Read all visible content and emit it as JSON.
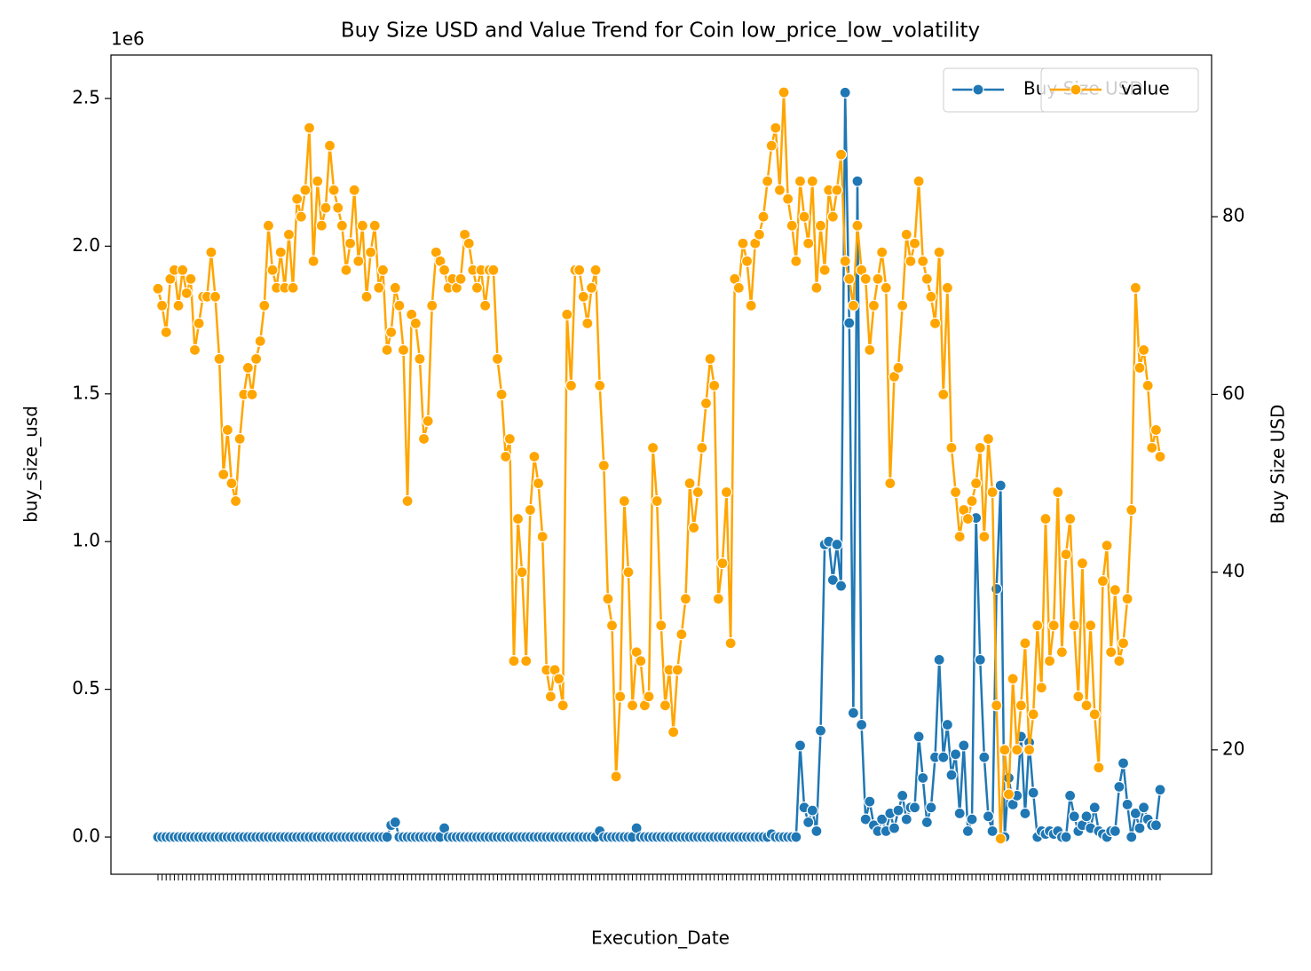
{
  "chart_data": {
    "type": "line",
    "title": "Buy Size USD and Value Trend for Coin low_price_low_volatility",
    "x_label": "Execution_Date",
    "y_label": "buy_size_usd",
    "y2_label": "Buy Size USD",
    "y_offset_label": "1e6",
    "legend": "upper right",
    "categories": [
      null,
      null,
      null,
      null,
      null,
      null,
      null,
      null,
      null,
      null,
      null,
      null,
      null,
      null,
      null,
      null,
      null,
      null,
      null,
      null,
      null,
      null,
      null,
      null,
      null,
      null,
      null,
      null,
      null,
      null,
      null,
      null,
      null,
      null,
      null,
      null,
      null,
      null,
      null,
      null,
      null,
      null,
      null,
      null,
      null,
      null,
      null,
      null,
      null,
      null,
      null,
      null,
      null,
      null,
      null,
      null,
      null,
      null,
      null,
      null,
      null,
      null,
      null,
      null,
      null,
      null,
      null,
      null,
      null,
      null,
      null,
      null,
      null,
      null,
      null,
      null,
      null,
      null,
      null,
      null,
      null,
      null,
      null,
      null,
      null,
      null,
      null,
      null,
      null,
      null,
      null,
      null,
      null,
      null,
      null,
      null,
      null,
      null,
      null,
      null,
      null,
      null,
      null,
      null,
      null,
      null,
      null,
      null,
      null,
      null,
      null,
      null,
      null,
      null,
      null,
      null,
      null,
      null,
      null,
      null,
      null,
      null,
      null,
      null,
      null,
      null,
      null,
      null,
      null,
      null,
      null,
      null,
      null,
      null,
      null,
      null,
      null,
      null,
      null,
      null,
      null,
      null,
      null,
      null,
      null,
      null,
      null,
      null,
      null,
      null,
      null,
      null,
      null,
      null,
      null,
      null,
      null,
      null,
      null,
      null,
      null,
      null,
      null,
      null,
      null,
      null,
      null,
      null,
      null,
      null,
      null,
      null,
      null,
      null,
      null,
      null,
      null,
      null,
      null,
      null,
      null,
      null,
      null,
      null,
      null,
      null,
      null,
      null,
      null,
      null,
      null,
      null,
      null,
      null,
      null,
      null,
      null,
      null,
      null,
      null,
      null,
      null,
      null,
      null,
      null,
      null,
      null,
      null,
      null,
      null,
      null,
      null,
      null,
      null,
      null,
      null,
      null,
      null,
      null,
      null,
      null,
      null,
      null,
      null,
      null,
      null,
      null,
      null,
      null,
      null,
      null,
      null,
      null,
      null,
      null,
      null,
      null,
      null,
      null,
      null,
      null,
      null,
      null,
      null,
      null,
      null
    ],
    "ylim": [
      -126000,
      2647000
    ],
    "yticks": [
      {
        "value": 0,
        "label": "0.0"
      },
      {
        "value": 500000,
        "label": "0.5"
      },
      {
        "value": 1000000,
        "label": "1.0"
      },
      {
        "value": 1500000,
        "label": "1.5"
      },
      {
        "value": 2000000,
        "label": "2.0"
      },
      {
        "value": 2500000,
        "label": "2.5"
      }
    ],
    "y2lim": [
      6.0,
      98.2
    ],
    "y2ticks": [
      20,
      40,
      60,
      80
    ],
    "series": [
      {
        "name": "Buy Size USD",
        "color": "#1f77b4",
        "values": [
          0,
          0,
          0,
          0,
          0,
          0,
          0,
          0,
          0,
          0,
          0,
          0,
          0,
          0,
          0,
          0,
          0,
          0,
          0,
          0,
          0,
          0,
          0,
          0,
          0,
          0,
          0,
          0,
          0,
          0,
          0,
          0,
          0,
          0,
          0,
          0,
          0,
          0,
          0,
          0,
          0,
          0,
          0,
          0,
          0,
          0,
          0,
          0,
          0,
          0,
          0,
          0,
          0,
          0,
          0,
          0,
          0,
          40000,
          50000,
          0,
          0,
          0,
          0,
          0,
          0,
          0,
          0,
          0,
          0,
          0,
          30000,
          0,
          0,
          0,
          0,
          0,
          0,
          0,
          0,
          0,
          0,
          0,
          0,
          0,
          0,
          0,
          0,
          0,
          0,
          0,
          0,
          0,
          0,
          0,
          0,
          0,
          0,
          0,
          0,
          0,
          0,
          0,
          0,
          0,
          0,
          0,
          0,
          0,
          20000,
          0,
          0,
          0,
          0,
          0,
          0,
          0,
          0,
          30000,
          0,
          0,
          0,
          0,
          0,
          0,
          0,
          0,
          0,
          0,
          0,
          0,
          0,
          0,
          0,
          0,
          0,
          0,
          0,
          0,
          0,
          0,
          0,
          0,
          0,
          0,
          0,
          0,
          0,
          0,
          0,
          0,
          10000,
          0,
          0,
          0,
          0,
          0,
          0,
          310000,
          100000,
          50000,
          90000,
          20000,
          360000,
          990000,
          1000000,
          870000,
          990000,
          850000,
          2520000,
          1740000,
          420000,
          2220000,
          380000,
          60000,
          120000,
          40000,
          20000,
          60000,
          20000,
          80000,
          30000,
          90000,
          140000,
          60000,
          100000,
          100000,
          340000,
          200000,
          50000,
          100000,
          270000,
          600000,
          270000,
          380000,
          210000,
          280000,
          80000,
          310000,
          20000,
          60000,
          1080000,
          600000,
          270000,
          70000,
          20000,
          840000,
          1190000,
          0,
          200000,
          110000,
          140000,
          340000,
          80000,
          320000,
          150000,
          0,
          20000,
          10000,
          20000,
          10000,
          20000,
          0,
          0,
          140000,
          70000,
          20000,
          40000,
          70000,
          30000,
          100000,
          20000,
          10000,
          0,
          20000,
          20000,
          170000,
          250000,
          110000,
          0,
          80000,
          30000,
          100000,
          60000,
          40000,
          40000,
          160000
        ]
      },
      {
        "name": "value",
        "color": "#ffa500",
        "axis": "y2",
        "values": [
          71.9,
          70,
          67,
          73,
          74,
          70,
          74,
          71.4,
          73,
          65,
          68,
          71,
          71,
          76,
          71,
          64,
          51,
          56,
          50,
          48,
          55,
          60,
          63,
          60,
          64,
          66,
          70,
          79,
          74,
          72,
          76,
          72,
          78,
          72,
          82,
          80,
          83,
          90,
          75,
          84,
          79,
          81,
          88,
          83,
          81,
          79,
          74,
          77,
          83,
          75,
          79,
          71,
          76,
          79,
          72,
          74,
          65,
          67,
          72,
          70,
          65,
          48,
          69,
          68,
          64,
          55,
          57,
          70,
          76,
          75,
          74,
          72,
          73,
          72,
          73,
          78,
          77,
          74,
          72,
          74,
          70,
          74,
          74,
          64,
          60,
          53,
          55,
          30,
          46,
          40,
          30,
          47,
          53,
          50,
          44,
          29,
          26,
          29,
          28,
          25,
          69,
          61,
          74,
          74,
          71,
          68,
          72,
          74,
          61,
          52,
          37,
          34,
          17,
          26,
          48,
          40,
          25,
          31,
          30,
          25,
          26,
          54,
          48,
          34,
          25,
          29,
          22,
          29,
          33,
          37,
          50,
          45,
          49,
          54,
          59,
          64,
          61,
          37,
          41,
          49,
          32,
          73,
          72,
          77,
          75,
          70,
          77,
          78,
          80,
          84,
          88,
          90,
          83,
          94,
          82,
          79,
          75,
          84,
          80,
          77,
          84,
          72,
          79,
          74,
          83,
          80,
          83,
          87,
          75,
          73,
          70,
          79,
          74,
          73,
          65,
          70,
          73,
          76,
          72,
          50,
          62,
          63,
          70,
          78,
          75,
          77,
          84,
          75,
          73,
          71,
          68,
          76,
          60,
          72,
          54,
          49,
          44,
          47,
          46,
          48,
          50,
          54,
          44,
          55,
          49,
          25,
          10,
          20,
          15,
          28,
          20,
          25,
          32,
          20,
          24,
          34,
          27,
          46,
          30,
          34,
          49,
          31,
          42,
          46,
          34,
          26,
          41,
          25,
          34,
          24,
          18,
          39,
          43,
          31,
          38,
          30,
          32,
          37,
          47,
          72,
          63,
          65,
          61,
          54,
          56,
          53
        ]
      }
    ]
  }
}
